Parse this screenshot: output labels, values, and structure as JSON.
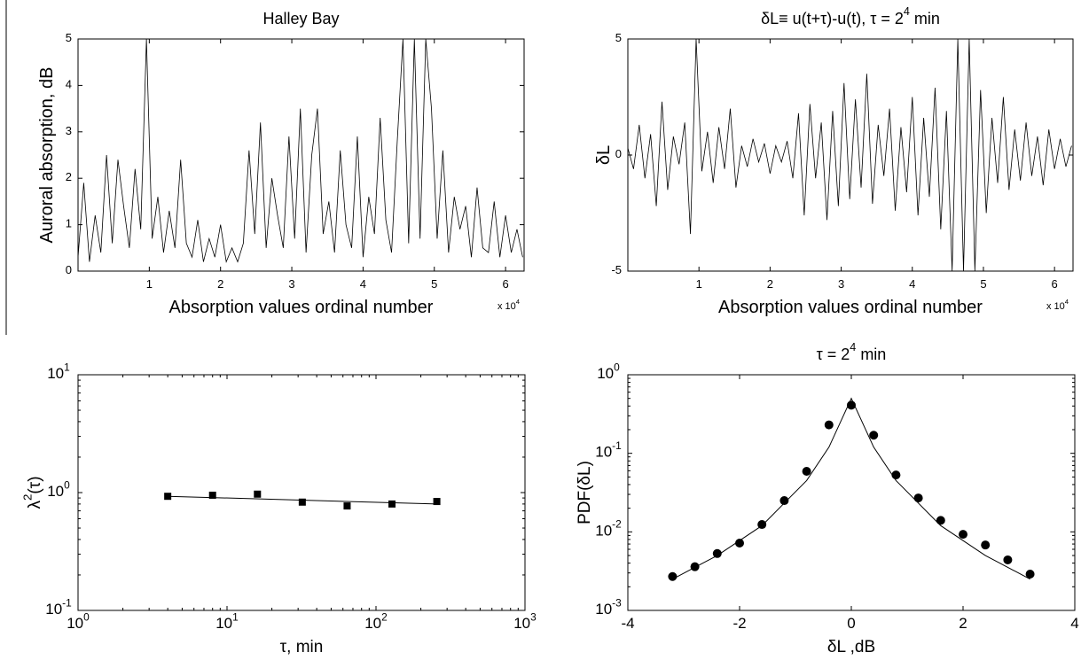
{
  "chart_data": [
    {
      "type": "line",
      "title": "Halley Bay",
      "x_label": "Absorption values ordinal number",
      "y_label": "Auroral absorption, dB",
      "x_scale_label": "x 10",
      "x_scale_exp": "4",
      "xlim": [
        0,
        62600
      ],
      "ylim": [
        0,
        5
      ],
      "xticks": [
        {
          "value": 10000,
          "label": "1"
        },
        {
          "value": 20000,
          "label": "2"
        },
        {
          "value": 30000,
          "label": "3"
        },
        {
          "value": 40000,
          "label": "4"
        },
        {
          "value": 50000,
          "label": "5"
        },
        {
          "value": 60000,
          "label": "6"
        }
      ],
      "yticks": [
        0,
        1,
        2,
        3,
        4,
        5
      ],
      "x": [
        0,
        800,
        1600,
        2400,
        3200,
        4000,
        4800,
        5600,
        6400,
        7200,
        8000,
        8800,
        9600,
        10400,
        11200,
        12000,
        12800,
        13600,
        14400,
        15200,
        16000,
        16800,
        17600,
        18400,
        19200,
        20000,
        20800,
        21600,
        22400,
        23200,
        24000,
        24800,
        25600,
        26400,
        27200,
        28000,
        28800,
        29600,
        30400,
        31200,
        32000,
        32800,
        33600,
        34400,
        35200,
        36000,
        36800,
        37600,
        38400,
        39200,
        40000,
        40800,
        41600,
        42400,
        43200,
        44000,
        44800,
        45600,
        46400,
        47200,
        48000,
        48800,
        49600,
        50400,
        51200,
        52000,
        52800,
        53600,
        54400,
        55200,
        56000,
        56800,
        57600,
        58400,
        59200,
        60000,
        60800,
        61600,
        62400
      ],
      "series": [
        {
          "color": "#000000",
          "values": [
            0.3,
            1.9,
            0.2,
            1.2,
            0.4,
            2.5,
            0.6,
            2.4,
            1.4,
            0.5,
            2.2,
            0.9,
            5.0,
            0.7,
            1.6,
            0.4,
            1.3,
            0.5,
            2.4,
            0.6,
            0.3,
            1.1,
            0.2,
            0.7,
            0.3,
            1.0,
            0.2,
            0.5,
            0.2,
            0.6,
            2.6,
            0.8,
            3.2,
            0.5,
            2.0,
            1.2,
            0.5,
            2.9,
            0.7,
            3.5,
            0.4,
            2.5,
            3.5,
            0.8,
            1.5,
            0.4,
            2.6,
            1.0,
            0.5,
            2.9,
            0.3,
            1.6,
            0.8,
            3.3,
            1.1,
            0.4,
            2.8,
            5.0,
            0.6,
            5.0,
            0.7,
            5.0,
            3.5,
            0.7,
            2.6,
            0.4,
            1.6,
            0.9,
            1.4,
            0.3,
            1.8,
            0.5,
            0.4,
            1.5,
            0.3,
            1.2,
            0.4,
            0.9,
            0.3
          ]
        }
      ]
    },
    {
      "type": "line",
      "title": "δL≡ u(t+τ)-u(t),    τ = 2",
      "title_exp": "4",
      "title_end": " min",
      "x_label": "Absorption values ordinal number",
      "y_label": "δL",
      "x_scale_label": "x 10",
      "x_scale_exp": "4",
      "xlim": [
        0,
        62600
      ],
      "ylim": [
        -5,
        5
      ],
      "xticks": [
        {
          "value": 10000,
          "label": "1"
        },
        {
          "value": 20000,
          "label": "2"
        },
        {
          "value": 30000,
          "label": "3"
        },
        {
          "value": 40000,
          "label": "4"
        },
        {
          "value": 50000,
          "label": "5"
        },
        {
          "value": 60000,
          "label": "6"
        }
      ],
      "yticks": [
        -5,
        0,
        5
      ],
      "x": [
        0,
        800,
        1600,
        2400,
        3200,
        4000,
        4800,
        5600,
        6400,
        7200,
        8000,
        8800,
        9600,
        10400,
        11200,
        12000,
        12800,
        13600,
        14400,
        15200,
        16000,
        16800,
        17600,
        18400,
        19200,
        20000,
        20800,
        21600,
        22400,
        23200,
        24000,
        24800,
        25600,
        26400,
        27200,
        28000,
        28800,
        29600,
        30400,
        31200,
        32000,
        32800,
        33600,
        34400,
        35200,
        36000,
        36800,
        37600,
        38400,
        39200,
        40000,
        40800,
        41600,
        42400,
        43200,
        44000,
        44800,
        45600,
        46400,
        47200,
        48000,
        48800,
        49600,
        50400,
        51200,
        52000,
        52800,
        53600,
        54400,
        55200,
        56000,
        56800,
        57600,
        58400,
        59200,
        60000,
        60800,
        61600,
        62400
      ],
      "series": [
        {
          "color": "#000000",
          "values": [
            0.3,
            -0.6,
            1.3,
            -1.0,
            0.9,
            -2.2,
            2.3,
            -1.5,
            0.8,
            -0.4,
            1.4,
            -3.4,
            5.0,
            -0.7,
            1.0,
            -1.2,
            1.2,
            -0.6,
            2.0,
            -1.4,
            0.4,
            -0.5,
            0.7,
            -0.3,
            0.5,
            -0.8,
            0.4,
            -0.3,
            0.6,
            -1.0,
            1.8,
            -2.6,
            2.2,
            -1.0,
            1.4,
            -2.8,
            1.9,
            -2.2,
            3.1,
            -1.9,
            2.4,
            -1.4,
            3.5,
            -2.1,
            1.3,
            -0.9,
            2.0,
            -2.4,
            1.2,
            -1.6,
            2.5,
            -2.6,
            1.6,
            -1.8,
            2.9,
            -3.2,
            1.9,
            -5.0,
            5.0,
            -5.0,
            5.0,
            -5.0,
            2.8,
            -2.5,
            1.6,
            -1.2,
            2.5,
            -1.5,
            1.1,
            -1.1,
            1.4,
            -0.9,
            0.8,
            -1.3,
            1.1,
            -0.6,
            0.7,
            -0.5,
            0.4
          ]
        }
      ]
    },
    {
      "type": "scatter",
      "x_label": "τ, min",
      "y_label": "λ",
      "y_label_exp": "2",
      "y_label_end": "(τ)",
      "xscale": "log",
      "yscale": "log",
      "xlim": [
        1,
        1000
      ],
      "ylim": [
        0.1,
        10
      ],
      "xticks": [
        {
          "value": 1,
          "label": "10",
          "exp": "0"
        },
        {
          "value": 10,
          "label": "10",
          "exp": "1"
        },
        {
          "value": 100,
          "label": "10",
          "exp": "2"
        },
        {
          "value": 1000,
          "label": "10",
          "exp": "3"
        }
      ],
      "yticks": [
        {
          "value": 0.1,
          "label": "10",
          "exp": "-1"
        },
        {
          "value": 1,
          "label": "10",
          "exp": "0"
        },
        {
          "value": 10,
          "label": "10",
          "exp": "1"
        }
      ],
      "series": [
        {
          "marker": "square",
          "color": "#000000",
          "x": [
            4,
            8,
            16,
            32,
            64,
            128,
            256
          ],
          "values": [
            0.93,
            0.95,
            0.97,
            0.83,
            0.77,
            0.8,
            0.84
          ]
        },
        {
          "marker": "line",
          "color": "#000000",
          "x": [
            4,
            256
          ],
          "values": [
            0.93,
            0.8
          ]
        }
      ]
    },
    {
      "type": "scatter",
      "title": "τ = 2",
      "title_exp": "4",
      "title_end": " min",
      "x_label": "δL ,dB",
      "y_label": "PDF(δL)",
      "yscale": "log",
      "xlim": [
        -4,
        4
      ],
      "ylim": [
        0.001,
        1
      ],
      "xticks": [
        -4,
        -2,
        0,
        2,
        4
      ],
      "yticks": [
        {
          "value": 0.001,
          "label": "10",
          "exp": "-3"
        },
        {
          "value": 0.01,
          "label": "10",
          "exp": "-2"
        },
        {
          "value": 0.1,
          "label": "10",
          "exp": "-1"
        },
        {
          "value": 1,
          "label": "10",
          "exp": "0"
        }
      ],
      "series": [
        {
          "marker": "circle",
          "color": "#000000",
          "x": [
            -3.2,
            -2.8,
            -2.4,
            -2.0,
            -1.6,
            -1.2,
            -0.8,
            -0.4,
            0,
            0.4,
            0.8,
            1.2,
            1.6,
            2.0,
            2.4,
            2.8,
            3.2
          ],
          "values": [
            0.0027,
            0.0036,
            0.0053,
            0.0072,
            0.0124,
            0.025,
            0.059,
            0.23,
            0.41,
            0.17,
            0.053,
            0.027,
            0.014,
            0.0093,
            0.0068,
            0.0044,
            0.0029
          ]
        },
        {
          "marker": "line",
          "color": "#000000",
          "x": [
            -3.2,
            -2.4,
            -1.6,
            -0.8,
            -0.4,
            0,
            0.4,
            0.8,
            1.6,
            2.4,
            3.2
          ],
          "values": [
            0.0025,
            0.005,
            0.012,
            0.045,
            0.12,
            0.5,
            0.12,
            0.045,
            0.012,
            0.005,
            0.0025
          ]
        }
      ]
    }
  ]
}
